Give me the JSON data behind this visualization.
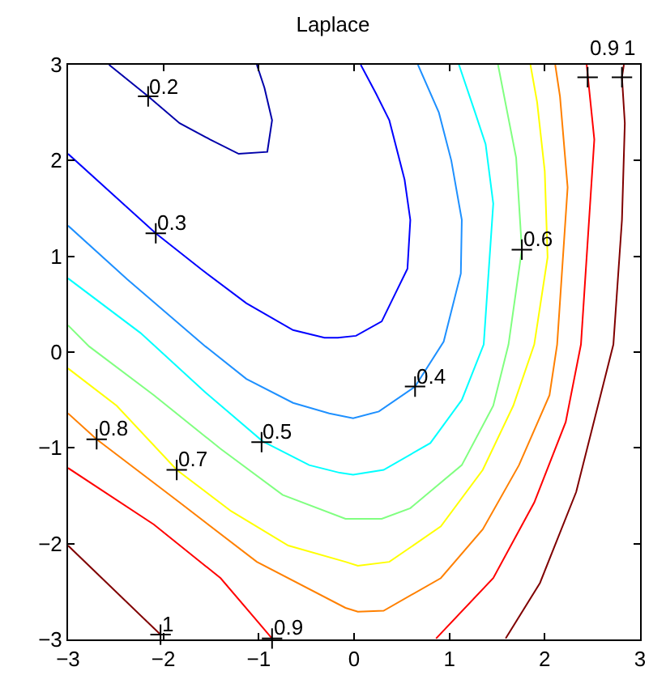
{
  "chart_data": {
    "type": "line",
    "title": "Laplace",
    "xlim": [
      -3,
      3
    ],
    "ylim": [
      -3,
      3
    ],
    "xticks": [
      -3,
      -2,
      -1,
      0,
      1,
      2,
      3
    ],
    "yticks": [
      -3,
      -2,
      -1,
      0,
      1,
      2,
      3
    ],
    "grid": false,
    "marker": "none",
    "line_style": "solid",
    "series": [
      {
        "color": "#0000aa",
        "x": [
          -2.57,
          -2.16,
          -1.83,
          -1.51,
          -1.21,
          -0.91,
          -0.86,
          -0.94,
          -1.02
        ],
        "values": [
          3.0,
          2.67,
          2.39,
          2.22,
          2.07,
          2.09,
          2.42,
          2.76,
          3.0
        ]
      },
      {
        "color": "#0000ff",
        "x": [
          -3.0,
          -2.08,
          -1.61,
          -1.13,
          -0.64,
          -0.31,
          -0.17,
          0.02,
          0.29,
          0.56,
          0.59,
          0.53,
          0.37,
          0.23,
          0.07
        ],
        "values": [
          2.07,
          1.24,
          0.87,
          0.51,
          0.23,
          0.15,
          0.15,
          0.17,
          0.32,
          0.87,
          1.38,
          1.8,
          2.42,
          2.7,
          3.0
        ]
      },
      {
        "color": "#1e90ff",
        "x": [
          -3.0,
          -2.38,
          -1.56,
          -1.13,
          -0.64,
          -0.26,
          -0.01,
          0.26,
          0.64,
          0.94,
          1.12,
          1.13,
          1.02,
          0.89,
          0.67
        ],
        "values": [
          1.32,
          0.76,
          0.06,
          -0.28,
          -0.53,
          -0.64,
          -0.69,
          -0.62,
          -0.36,
          0.11,
          0.82,
          1.38,
          2.0,
          2.5,
          3.0
        ]
      },
      {
        "color": "#00ffff",
        "x": [
          -3.0,
          -2.24,
          -1.56,
          -0.96,
          -0.47,
          -0.15,
          -0.01,
          0.31,
          0.8,
          1.13,
          1.36,
          1.46,
          1.38,
          1.27,
          1.1
        ],
        "values": [
          0.77,
          0.2,
          -0.42,
          -0.93,
          -1.18,
          -1.26,
          -1.28,
          -1.23,
          -0.95,
          -0.5,
          0.08,
          1.55,
          2.17,
          2.5,
          3.0
        ]
      },
      {
        "color": "#80ff80",
        "x": [
          -3.0,
          -2.78,
          -2.1,
          -1.4,
          -0.75,
          -0.09,
          0.29,
          0.59,
          1.13,
          1.46,
          1.62,
          1.76,
          1.7,
          1.51
        ],
        "values": [
          0.28,
          0.06,
          -0.45,
          -1.01,
          -1.49,
          -1.74,
          -1.74,
          -1.63,
          -1.18,
          -0.56,
          0.08,
          1.07,
          2.03,
          3.0
        ]
      },
      {
        "color": "#ffff00",
        "x": [
          -3.0,
          -2.49,
          -1.86,
          -1.29,
          -0.69,
          -0.09,
          0.04,
          0.37,
          0.91,
          1.35,
          1.67,
          1.89,
          2.03,
          2.0,
          1.92,
          1.85
        ],
        "values": [
          -0.17,
          -0.56,
          -1.23,
          -1.66,
          -2.02,
          -2.19,
          -2.23,
          -2.19,
          -1.82,
          -1.23,
          -0.56,
          0.08,
          0.99,
          1.89,
          2.61,
          3.0
        ]
      },
      {
        "color": "#ff8000",
        "x": [
          -3.0,
          -2.7,
          -1.83,
          -1.02,
          -0.09,
          0.04,
          0.31,
          0.91,
          1.35,
          1.73,
          2.05,
          2.13,
          2.24,
          2.16,
          2.11
        ],
        "values": [
          -0.64,
          -0.91,
          -1.57,
          -2.19,
          -2.67,
          -2.71,
          -2.7,
          -2.36,
          -1.85,
          -1.18,
          -0.45,
          0.08,
          1.72,
          2.67,
          3.0
        ]
      },
      {
        "color": "#ff0000",
        "x": [
          -3.0,
          -2.1,
          -1.4,
          -0.86
        ],
        "values": [
          -1.21,
          -1.8,
          -2.36,
          -2.99
        ]
      },
      {
        "color": "#ff0000",
        "x": [
          0.86,
          1.46,
          1.89,
          2.22,
          2.38,
          2.52,
          2.45,
          2.44
        ],
        "values": [
          -2.99,
          -2.36,
          -1.57,
          -0.73,
          0.08,
          2.22,
          2.9,
          3.0
        ]
      },
      {
        "color": "#800000",
        "x": [
          -3.0,
          -2.03
        ],
        "values": [
          -2.02,
          -2.95
        ]
      },
      {
        "color": "#800000",
        "x": [
          1.59,
          1.95,
          2.33,
          2.72,
          2.81,
          2.84,
          2.81,
          2.83
        ],
        "values": [
          -2.99,
          -2.41,
          -1.46,
          0.08,
          1.38,
          2.39,
          2.87,
          3.0
        ]
      }
    ],
    "annotations": [
      {
        "text": "0.2",
        "x": -2.16,
        "y": 2.67
      },
      {
        "text": "0.3",
        "x": -2.08,
        "y": 1.24
      },
      {
        "text": "0.4",
        "x": 0.64,
        "y": -0.36
      },
      {
        "text": "0.5",
        "x": -0.97,
        "y": -0.94
      },
      {
        "text": "0.6",
        "x": 1.76,
        "y": 1.07
      },
      {
        "text": "0.7",
        "x": -1.86,
        "y": -1.23
      },
      {
        "text": "0.8",
        "x": -2.7,
        "y": -0.91
      },
      {
        "text": "0.9",
        "x": -0.86,
        "y": -2.99
      },
      {
        "text": "0.9",
        "x": 2.45,
        "y": 2.87
      },
      {
        "text": "1",
        "x": -2.03,
        "y": -2.95
      },
      {
        "text": "1",
        "x": 2.81,
        "y": 2.87
      }
    ]
  }
}
